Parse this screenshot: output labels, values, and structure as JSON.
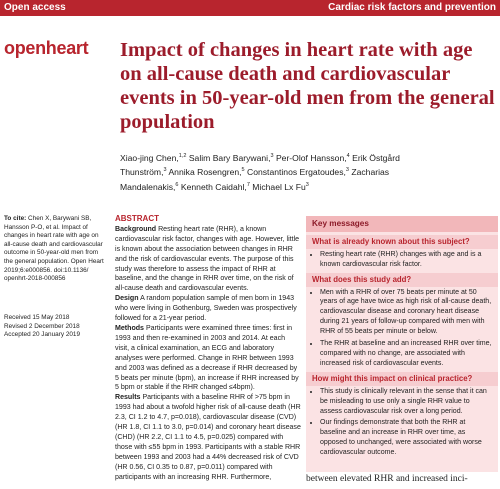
{
  "header": {
    "section": "Open access",
    "topic": "Cardiac risk factors and prevention"
  },
  "logo": "openheart",
  "title": "Impact of changes in heart rate with age on all-cause death and cardiovascular events in 50-year-old men from the general population",
  "authors": [
    {
      "name": "Xiao-jing Chen,",
      "aff": "1,2"
    },
    {
      "name": "Salim Bary Barywani,",
      "aff": "3"
    },
    {
      "name": "Per-Olof Hansson,",
      "aff": "4"
    },
    {
      "name": "Erik Östgård Thunström,",
      "aff": "3"
    },
    {
      "name": "Annika Rosengren,",
      "aff": "5"
    },
    {
      "name": "Constantinos Ergatoudes,",
      "aff": "3"
    },
    {
      "name": "Zacharias Mandalenakis,",
      "aff": "6"
    },
    {
      "name": "Kenneth Caidahl,",
      "aff": "7"
    },
    {
      "name": "Michael Lx Fu",
      "aff": "3"
    }
  ],
  "cite": {
    "label": "To cite:",
    "text": "Chen X, Barywani SB, Hansson P-O, et al. Impact of changes in heart rate with age on all-cause death and cardiovascular outcome in 50-year-old men from the general population. Open Heart 2019;6:e000856. doi:10.1136/ openhrt-2018-000856"
  },
  "dates": [
    "Received 15 May 2018",
    "Revised 2 December 2018",
    "Accepted 20 January 2019"
  ],
  "abstract": {
    "heading": "ABSTRACT",
    "sections": [
      {
        "label": "Background",
        "text": "Resting heart rate (RHR), a known cardiovascular risk factor, changes with age. However, little is known about the association between changes in RHR and the risk of cardiovascular events. The purpose of this study was therefore to assess the impact of RHR at baseline, and the change in RHR over time, on the risk of all-cause death and cardiovascular events."
      },
      {
        "label": "Design",
        "text": "A random population sample of men born in 1943 who were living in Gothenburg, Sweden was prospectively followed for a 21-year period."
      },
      {
        "label": "Methods",
        "text": "Participants were examined three times: first in 1993 and then re-examined in 2003 and 2014. At each visit, a clinical examination, an ECG and laboratory analyses were performed. Change in RHR between 1993 and 2003 was defined as a decrease if RHR decreased by 5 beats per minute (bpm), an increase if RHR increased by 5 bpm or stable if the RHR changed ≤4bpm)."
      },
      {
        "label": "Results",
        "text": "Participants with a baseline RHR of >75 bpm in 1993 had about a twofold higher risk of all-cause death (HR 2.3, CI 1.2 to 4.7, p=0.018), cardiovascular disease (CVD) (HR 1.8, CI 1.1 to 3.0, p=0.014) and coronary heart disease (CHD) (HR 2.2, CI 1.1 to 4.5, p=0.025) compared with those with ≤55 bpm in 1993. Participants with a stable RHR between 1993 and 2003 had a 44% decreased risk of CVD (HR 0.56, CI 0.35 to 0.87, p=0.011) compared with participants with an increasing RHR. Furthermore,"
      }
    ]
  },
  "key_messages": {
    "heading": "Key messages",
    "sections": [
      {
        "title": "What is already known about this subject?",
        "bullets": [
          "Resting heart rate (RHR) changes with age and is a known cardiovascular risk factor."
        ]
      },
      {
        "title": "What does this study add?",
        "bullets": [
          "Men with a RHR of over 75 beats per minute at 50 years of age have twice as high risk of all-cause death, cardiovascular disease and coronary heart disease during 21 years of follow-up compared with men with RHR of 55 beats per minute or below.",
          "The RHR at baseline and an increased RHR over time, compared with no change, are associated with increased risk of cardiovascular events."
        ]
      },
      {
        "title": "How might this impact on clinical practice?",
        "bullets": [
          "This study is clinically relevant in the sense that it can be misleading to use only a single RHR value to assess cardiovascular risk over a long period.",
          "Our findings demonstrate that both the RHR at baseline and an increase in RHR over time, as opposed to unchanged, were associated with worse cardiovascular outcome."
        ]
      }
    ]
  },
  "body_text": "between elevated RHR and increased inci-"
}
